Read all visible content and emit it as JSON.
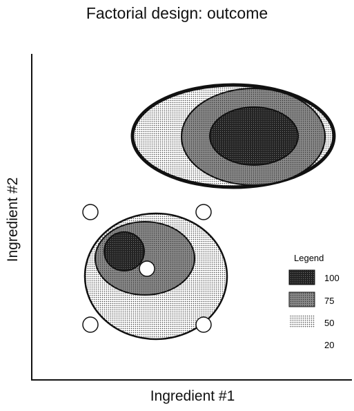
{
  "title": "Factorial design: outcome",
  "xlabel": "Ingredient #1",
  "ylabel": "Ingredient #2",
  "legend": {
    "title": "Legend",
    "entries": [
      {
        "label": "100",
        "fill": "#1a1a1a"
      },
      {
        "label": "75",
        "fill": "#6e6e6e"
      },
      {
        "label": "50",
        "fill": "#cfcfcf"
      },
      {
        "label": "20",
        "fill": "#ffffff"
      }
    ]
  },
  "contour_groups": [
    {
      "group": "upper-right",
      "levels": [
        "20",
        "50",
        "75",
        "100"
      ]
    },
    {
      "group": "lower-left",
      "levels": [
        "50",
        "75",
        "100"
      ]
    }
  ],
  "design_points": {
    "count": 5
  }
}
